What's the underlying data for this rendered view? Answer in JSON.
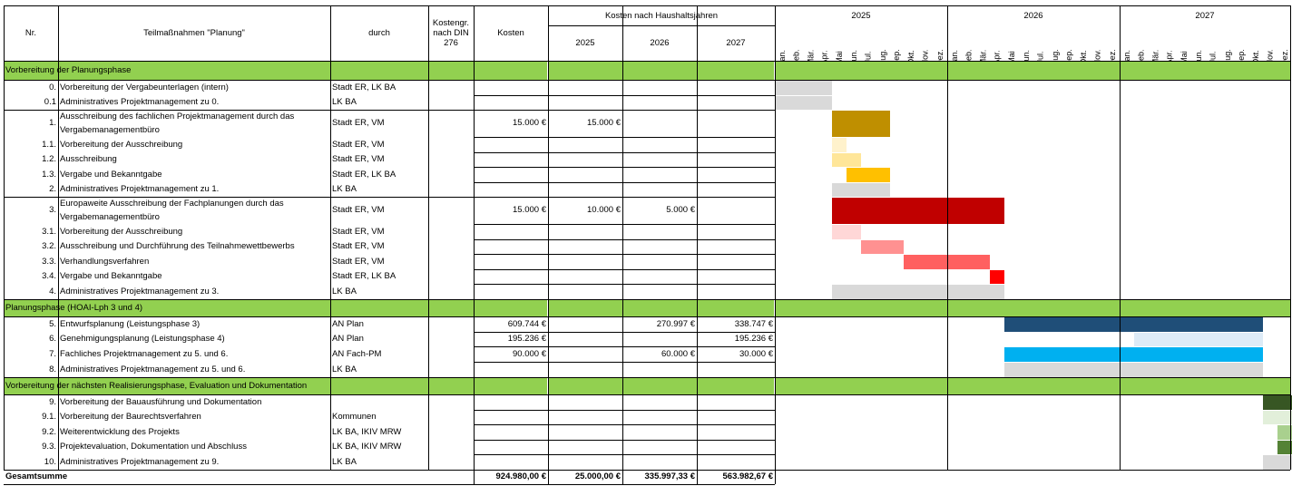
{
  "header": {
    "nr": "Nr.",
    "teilmassnahmen": "Teilmaßnahmen \"Planung\"",
    "durch": "durch",
    "kostengr": "Kostengr. nach DIN 276",
    "kosten": "Kosten",
    "kosten_haushalt": "Kosten nach Haushaltsjahren",
    "years": [
      "2025",
      "2026",
      "2027"
    ],
    "months": [
      "Jan.",
      "Feb.",
      "Mär.",
      "Apr.",
      "Mai",
      "Jun.",
      "Jul.",
      "Aug.",
      "Sep.",
      "Okt.",
      "Nov.",
      "Dez."
    ]
  },
  "sections": [
    {
      "label": "Vorbereitung der Planungsphase"
    },
    {
      "label": "Planungsphase (HOAI-Lph 3 und 4)"
    },
    {
      "label": "Vorbereitung der nächsten Realisierungsphase, Evaluation und Dokumentation"
    }
  ],
  "rows": [
    {
      "nr": "0.",
      "name": "Vorbereitung der Vergabeunterlagen (intern)",
      "durch": "Stadt ER, LK BA",
      "kosten": "",
      "k2025": "",
      "k2026": "",
      "k2027": ""
    },
    {
      "nr": "0.1",
      "name": "Administratives Projektmanagement zu 0.",
      "durch": "LK BA",
      "kosten": "",
      "k2025": "",
      "k2026": "",
      "k2027": ""
    },
    {
      "nr": "1.",
      "name": "Ausschreibung des fachlichen Projektmanagement durch das Vergabemanagementbüro",
      "durch": "Stadt ER, VM",
      "kosten": "15.000 €",
      "k2025": "15.000 €",
      "k2026": "",
      "k2027": ""
    },
    {
      "nr": "1.1.",
      "name": "Vorbereitung der Ausschreibung",
      "durch": "Stadt ER, VM",
      "kosten": "",
      "k2025": "",
      "k2026": "",
      "k2027": ""
    },
    {
      "nr": "1.2.",
      "name": "Ausschreibung",
      "durch": "Stadt ER, VM",
      "kosten": "",
      "k2025": "",
      "k2026": "",
      "k2027": ""
    },
    {
      "nr": "1.3.",
      "name": "Vergabe und Bekanntgabe",
      "durch": "Stadt ER, LK BA",
      "kosten": "",
      "k2025": "",
      "k2026": "",
      "k2027": ""
    },
    {
      "nr": "2.",
      "name": "Administratives Projektmanagement zu 1.",
      "durch": "LK BA",
      "kosten": "",
      "k2025": "",
      "k2026": "",
      "k2027": ""
    },
    {
      "nr": "3.",
      "name": "Europaweite Ausschreibung der Fachplanungen durch das Vergabemanagementbüro",
      "durch": "Stadt ER, VM",
      "kosten": "15.000 €",
      "k2025": "10.000 €",
      "k2026": "5.000 €",
      "k2027": ""
    },
    {
      "nr": "3.1.",
      "name": "Vorbereitung der Ausschreibung",
      "durch": "Stadt ER, VM",
      "kosten": "",
      "k2025": "",
      "k2026": "",
      "k2027": ""
    },
    {
      "nr": "3.2.",
      "name": "Ausschreibung und Durchführung des Teilnahmewettbewerbs",
      "durch": "Stadt ER, VM",
      "kosten": "",
      "k2025": "",
      "k2026": "",
      "k2027": ""
    },
    {
      "nr": "3.3.",
      "name": "Verhandlungsverfahren",
      "durch": "Stadt ER, VM",
      "kosten": "",
      "k2025": "",
      "k2026": "",
      "k2027": ""
    },
    {
      "nr": "3.4.",
      "name": "Vergabe und Bekanntgabe",
      "durch": "Stadt ER, LK BA",
      "kosten": "",
      "k2025": "",
      "k2026": "",
      "k2027": ""
    },
    {
      "nr": "4.",
      "name": "Administratives Projektmanagement zu 3.",
      "durch": "LK BA",
      "kosten": "",
      "k2025": "",
      "k2026": "",
      "k2027": ""
    },
    {
      "nr": "5.",
      "name": "Entwurfsplanung (Leistungsphase 3)",
      "durch": "AN Plan",
      "kosten": "609.744 €",
      "k2025": "",
      "k2026": "270.997 €",
      "k2027": "338.747 €"
    },
    {
      "nr": "6.",
      "name": "Genehmigungsplanung (Leistungsphase 4)",
      "durch": "AN Plan",
      "kosten": "195.236 €",
      "k2025": "",
      "k2026": "",
      "k2027": "195.236 €"
    },
    {
      "nr": "7.",
      "name": "Fachliches Projektmanagement zu 5. und 6.",
      "durch": "AN Fach-PM",
      "kosten": "90.000 €",
      "k2025": "",
      "k2026": "60.000 €",
      "k2027": "30.000 €"
    },
    {
      "nr": "8.",
      "name": "Administratives Projektmanagement zu 5. und 6.",
      "durch": "LK BA",
      "kosten": "",
      "k2025": "",
      "k2026": "",
      "k2027": ""
    },
    {
      "nr": "9.",
      "name": "Vorbereitung der Bauausführung und Dokumentation",
      "durch": "",
      "kosten": "",
      "k2025": "",
      "k2026": "",
      "k2027": ""
    },
    {
      "nr": "9.1.",
      "name": "Vorbereitung der Baurechtsverfahren",
      "durch": "Kommunen",
      "kosten": "",
      "k2025": "",
      "k2026": "",
      "k2027": ""
    },
    {
      "nr": "9.2.",
      "name": "Weiterentwicklung des Projekts",
      "durch": "LK BA, IKIV MRW",
      "kosten": "",
      "k2025": "",
      "k2026": "",
      "k2027": ""
    },
    {
      "nr": "9.3.",
      "name": "Projektevaluation, Dokumentation und Abschluss",
      "durch": "LK BA, IKIV MRW",
      "kosten": "",
      "k2025": "",
      "k2026": "",
      "k2027": ""
    },
    {
      "nr": "10.",
      "name": "Administratives Projektmanagement zu 9.",
      "durch": "LK BA",
      "kosten": "",
      "k2025": "",
      "k2026": "",
      "k2027": ""
    }
  ],
  "total": {
    "label": "Gesamtsumme",
    "kosten": "924.980,00 €",
    "k2025": "25.000,00 €",
    "k2026": "335.997,33 €",
    "k2027": "563.982,67 €"
  },
  "gantt_bars": [
    {
      "task": "0.",
      "start_month": "2025-01",
      "end_month": "2025-04",
      "color": "#d9d9d9"
    },
    {
      "task": "0.1",
      "start_month": "2025-01",
      "end_month": "2025-04",
      "color": "#d9d9d9"
    },
    {
      "task": "1.",
      "start_month": "2025-05",
      "end_month": "2025-08",
      "color": "#bf8f00"
    },
    {
      "task": "1.1.",
      "start_month": "2025-05",
      "end_month": "2025-05",
      "color": "#fff2cc"
    },
    {
      "task": "1.2.",
      "start_month": "2025-05",
      "end_month": "2025-06",
      "color": "#ffe699"
    },
    {
      "task": "1.3.",
      "start_month": "2025-06",
      "end_month": "2025-08",
      "color": "#ffc000"
    },
    {
      "task": "2.",
      "start_month": "2025-05",
      "end_month": "2025-08",
      "color": "#d9d9d9"
    },
    {
      "task": "3.",
      "start_month": "2025-05",
      "end_month": "2026-04",
      "color": "#c00000"
    },
    {
      "task": "3.1.",
      "start_month": "2025-05",
      "end_month": "2025-06",
      "color": "#ffd7d7"
    },
    {
      "task": "3.2.",
      "start_month": "2025-07",
      "end_month": "2025-09",
      "color": "#ff9191"
    },
    {
      "task": "3.3.",
      "start_month": "2025-10",
      "end_month": "2026-03",
      "color": "#ff6060"
    },
    {
      "task": "3.4.",
      "start_month": "2026-04",
      "end_month": "2026-04",
      "color": "#ff0000"
    },
    {
      "task": "4.",
      "start_month": "2025-05",
      "end_month": "2026-04",
      "color": "#d9d9d9"
    },
    {
      "task": "5.",
      "start_month": "2026-05",
      "end_month": "2027-10",
      "color": "#1f4e78"
    },
    {
      "task": "6.",
      "start_month": "2027-02",
      "end_month": "2027-10",
      "color": "#ddebf7"
    },
    {
      "task": "7.",
      "start_month": "2026-05",
      "end_month": "2027-10",
      "color": "#00b0f0"
    },
    {
      "task": "8.",
      "start_month": "2026-05",
      "end_month": "2027-10",
      "color": "#d9d9d9"
    },
    {
      "task": "9.",
      "start_month": "2027-11",
      "end_month": "2027-12",
      "color": "#375623"
    },
    {
      "task": "9.1.",
      "start_month": "2027-11",
      "end_month": "2027-12",
      "color": "#e2efda"
    },
    {
      "task": "9.2.",
      "start_month": "2027-12",
      "end_month": "2027-12",
      "color": "#a9d08e"
    },
    {
      "task": "9.3.",
      "start_month": "2027-12",
      "end_month": "2027-12",
      "color": "#548235"
    },
    {
      "task": "10.",
      "start_month": "2027-11",
      "end_month": "2027-12",
      "color": "#d9d9d9"
    }
  ]
}
